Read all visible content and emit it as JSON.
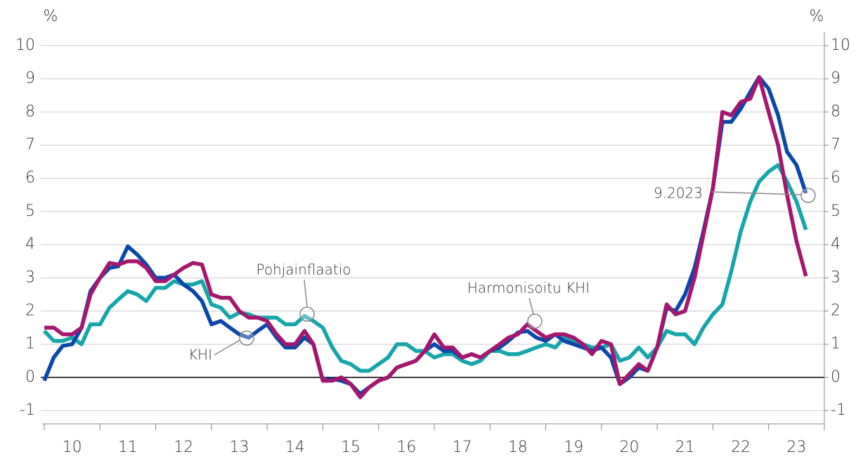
{
  "chart_data": {
    "type": "line",
    "y_unit": "%",
    "x": [
      2010,
      2010.17,
      2010.33,
      2010.5,
      2010.67,
      2010.83,
      2011,
      2011.17,
      2011.33,
      2011.5,
      2011.67,
      2011.83,
      2012,
      2012.17,
      2012.33,
      2012.5,
      2012.67,
      2012.83,
      2013,
      2013.17,
      2013.33,
      2013.5,
      2013.67,
      2013.83,
      2014,
      2014.17,
      2014.33,
      2014.5,
      2014.67,
      2014.83,
      2015,
      2015.17,
      2015.33,
      2015.5,
      2015.67,
      2015.83,
      2016,
      2016.17,
      2016.33,
      2016.5,
      2016.67,
      2016.83,
      2017,
      2017.17,
      2017.33,
      2017.5,
      2017.67,
      2017.83,
      2018,
      2018.17,
      2018.33,
      2018.5,
      2018.67,
      2018.83,
      2019,
      2019.17,
      2019.33,
      2019.5,
      2019.67,
      2019.83,
      2020,
      2020.17,
      2020.33,
      2020.5,
      2020.67,
      2020.83,
      2021,
      2021.17,
      2021.33,
      2021.5,
      2021.67,
      2021.83,
      2022,
      2022.17,
      2022.33,
      2022.5,
      2022.67,
      2022.83,
      2023,
      2023.17,
      2023.33,
      2023.5,
      2023.67
    ],
    "series": [
      {
        "name": "KHI",
        "color": "#0a47a9",
        "values": [
          -0.1,
          0.6,
          0.95,
          1.0,
          1.5,
          2.6,
          3.0,
          3.3,
          3.35,
          3.95,
          3.7,
          3.4,
          3.0,
          3.0,
          3.1,
          2.8,
          2.6,
          2.3,
          1.6,
          1.7,
          1.5,
          1.3,
          1.2,
          1.4,
          1.6,
          1.2,
          0.9,
          0.9,
          1.2,
          1.0,
          -0.1,
          -0.05,
          -0.1,
          -0.2,
          -0.5,
          -0.3,
          -0.1,
          0.0,
          0.3,
          0.4,
          0.5,
          0.8,
          1.0,
          0.8,
          0.8,
          0.6,
          0.7,
          0.6,
          0.8,
          0.9,
          1.1,
          1.35,
          1.4,
          1.2,
          1.1,
          1.3,
          1.1,
          1.0,
          0.9,
          0.8,
          0.9,
          0.6,
          -0.2,
          0.0,
          0.3,
          0.2,
          0.9,
          2.1,
          2.0,
          2.5,
          3.3,
          4.4,
          5.7,
          7.7,
          7.7,
          8.1,
          8.6,
          9.05,
          8.7,
          7.9,
          6.8,
          6.4,
          5.55
        ]
      },
      {
        "name": "Harmonisoitu KHI",
        "color": "#a5166e",
        "values": [
          1.5,
          1.5,
          1.3,
          1.3,
          1.5,
          2.5,
          3.0,
          3.45,
          3.4,
          3.5,
          3.5,
          3.3,
          2.9,
          2.9,
          3.1,
          3.3,
          3.45,
          3.4,
          2.5,
          2.4,
          2.4,
          2.0,
          1.8,
          1.8,
          1.7,
          1.3,
          1.0,
          1.0,
          1.4,
          1.0,
          -0.1,
          -0.1,
          0.0,
          -0.2,
          -0.6,
          -0.3,
          -0.1,
          0.0,
          0.3,
          0.4,
          0.5,
          0.8,
          1.3,
          0.9,
          0.9,
          0.6,
          0.7,
          0.6,
          0.8,
          1.0,
          1.2,
          1.3,
          1.6,
          1.4,
          1.2,
          1.3,
          1.3,
          1.2,
          1.0,
          0.7,
          1.1,
          1.0,
          -0.2,
          0.1,
          0.4,
          0.2,
          0.9,
          2.2,
          1.9,
          2.0,
          3.0,
          4.3,
          5.7,
          8.0,
          7.9,
          8.3,
          8.4,
          9.05,
          8.0,
          7.0,
          5.5,
          4.1,
          3.05
        ]
      },
      {
        "name": "Pohjainflaatio",
        "color": "#17a5ac",
        "values": [
          1.4,
          1.1,
          1.1,
          1.2,
          1.0,
          1.6,
          1.6,
          2.1,
          2.35,
          2.6,
          2.5,
          2.3,
          2.7,
          2.7,
          2.9,
          2.8,
          2.8,
          2.9,
          2.2,
          2.1,
          1.8,
          1.95,
          1.9,
          1.8,
          1.8,
          1.8,
          1.6,
          1.6,
          1.85,
          1.7,
          1.5,
          0.9,
          0.5,
          0.4,
          0.2,
          0.2,
          0.4,
          0.6,
          1.0,
          1.0,
          0.8,
          0.8,
          0.6,
          0.7,
          0.7,
          0.5,
          0.4,
          0.5,
          0.8,
          0.8,
          0.7,
          0.7,
          0.8,
          0.9,
          1.0,
          0.9,
          1.2,
          1.1,
          1.0,
          0.9,
          0.9,
          1.0,
          0.5,
          0.6,
          0.9,
          0.6,
          0.9,
          1.4,
          1.3,
          1.3,
          1.0,
          1.5,
          1.9,
          2.2,
          3.2,
          4.4,
          5.3,
          5.9,
          6.2,
          6.4,
          5.9,
          5.3,
          4.45
        ]
      }
    ],
    "end_label": "9.2023",
    "xlim": [
      2010,
      2024
    ],
    "xticks": [
      {
        "value": 2010,
        "label": "10"
      },
      {
        "value": 2011,
        "label": "11"
      },
      {
        "value": 2012,
        "label": "12"
      },
      {
        "value": 2013,
        "label": "13"
      },
      {
        "value": 2014,
        "label": "14"
      },
      {
        "value": 2015,
        "label": "15"
      },
      {
        "value": 2016,
        "label": "16"
      },
      {
        "value": 2017,
        "label": "17"
      },
      {
        "value": 2018,
        "label": "18"
      },
      {
        "value": 2019,
        "label": "19"
      },
      {
        "value": 2020,
        "label": "20"
      },
      {
        "value": 2021,
        "label": "21"
      },
      {
        "value": 2022,
        "label": "22"
      },
      {
        "value": 2023,
        "label": "23"
      }
    ],
    "ylim": [
      -1.4,
      10.4
    ],
    "yticks": [
      -1,
      0,
      1,
      2,
      3,
      4,
      5,
      6,
      7,
      8,
      9,
      10
    ],
    "grid": true
  }
}
